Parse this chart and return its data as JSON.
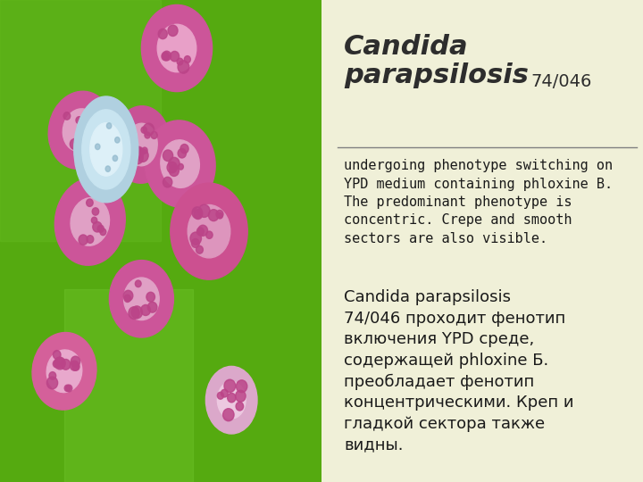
{
  "bg_color": "#f5f5dc",
  "right_panel_bg": "#f0f0d8",
  "title_color": "#2d2d2d",
  "title_fontsize": 22,
  "underline_color": "#808080",
  "body_en": "undergoing phenotype switching on\nYPD medium containing phloxine B.\nThe predominant phenotype is\nconcentric. Crepe and smooth\nsectors are also visible.",
  "body_en_fontsize": 11,
  "body_ru": "Candida parapsilosis\n74/046 проходит фенотип\nвключения YPD среде,\nсодержащей phloxine Б.\nпреобладает фенотип\nконцентрическими. Креп и\nгладкой сектора также\nвидны.",
  "body_ru_fontsize": 13,
  "text_color": "#1a1a1a"
}
